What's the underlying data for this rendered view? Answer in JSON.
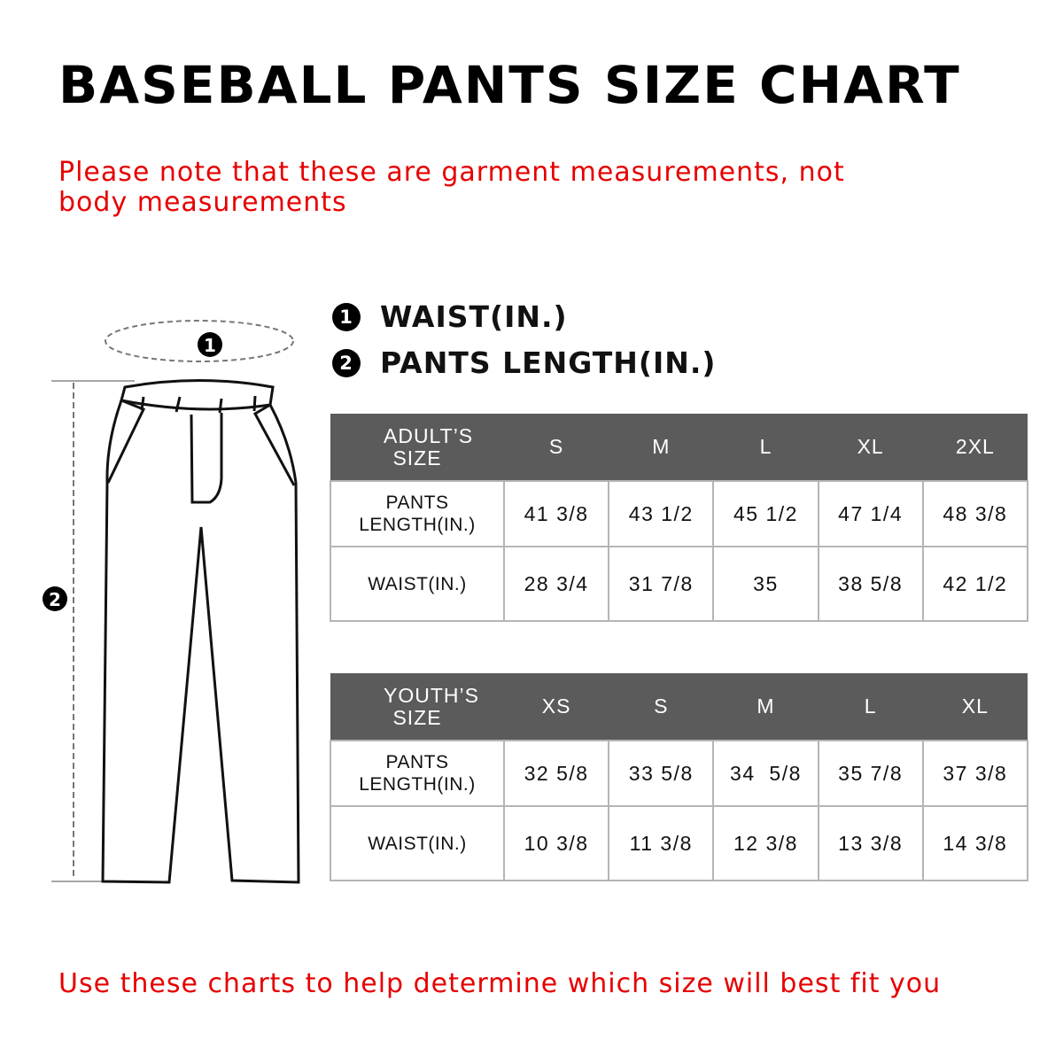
{
  "title": "BASEBALL PANTS SIZE CHART",
  "note_top": "Please note that these are garment measurements, not body measurements",
  "note_bottom": "Use these charts to help determine which size will best fit you",
  "legend": [
    {
      "num": "1",
      "label": "WAIST(IN.)"
    },
    {
      "num": "2",
      "label": "PANTS LENGTH(IN.)"
    }
  ],
  "colors": {
    "header_bg": "#5b5b5b",
    "note": "#e60000"
  },
  "adult": {
    "header": "ADULT’S SIZE",
    "sizes": [
      "S",
      "M",
      "L",
      "XL",
      "2XL"
    ],
    "rows": [
      {
        "label": "PANTS LENGTH(IN.)",
        "values": [
          "41 3/8",
          "43 1/2",
          "45 1/2",
          "47 1/4",
          "48 3/8"
        ]
      },
      {
        "label": "WAIST(IN.)",
        "values": [
          "28 3/4",
          "31 7/8",
          "35",
          "38 5/8",
          "42 1/2"
        ]
      }
    ]
  },
  "youth": {
    "header": "YOUTH’S SIZE",
    "sizes": [
      "XS",
      "S",
      "M",
      "L",
      "XL"
    ],
    "rows": [
      {
        "label": "PANTS LENGTH(IN.)",
        "values": [
          "32 5/8",
          "33 5/8",
          "34  5/8",
          "35 7/8",
          "37 3/8"
        ]
      },
      {
        "label": "WAIST(IN.)",
        "values": [
          "10 3/8",
          "11 3/8",
          "12 3/8",
          "13 3/8",
          "14 3/8"
        ]
      }
    ]
  }
}
